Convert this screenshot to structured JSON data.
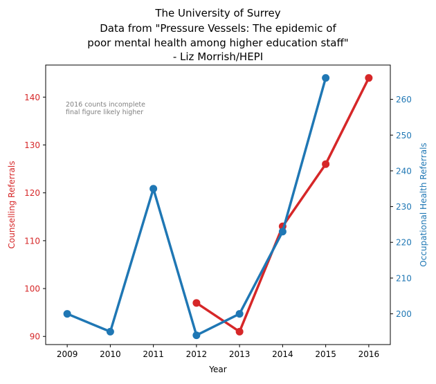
{
  "chart_data": {
    "type": "line",
    "title_lines": [
      "The University of Surrey",
      "Data from \"Pressure Vessels: The epidemic of",
      "poor mental health among higher education staff\"",
      "- Liz Morrish/HEPI"
    ],
    "xlabel": "Year",
    "ylabel_left": "Counselling Referrals",
    "ylabel_right": "Occupational Health Referrals",
    "annotation_lines": [
      "2016 counts incomplete",
      "final figure likely higher"
    ],
    "x_ticks": [
      "2009",
      "2010",
      "2011",
      "2012",
      "2013",
      "2014",
      "2015",
      "2016"
    ],
    "x_range": [
      2008.5,
      2016.5
    ],
    "y_left_ticks": [
      90,
      100,
      110,
      120,
      130,
      140
    ],
    "y_left_range": [
      88.3,
      146.7
    ],
    "y_right_ticks": [
      200,
      210,
      220,
      230,
      240,
      250,
      260
    ],
    "y_right_range": [
      191.4,
      269.6
    ],
    "grid": false,
    "series": [
      {
        "axis": "left",
        "color": "#d62728",
        "points": [
          [
            2012,
            97
          ],
          [
            2013,
            91
          ],
          [
            2014,
            113
          ],
          [
            2015,
            126
          ],
          [
            2016,
            144
          ]
        ]
      },
      {
        "axis": "right",
        "color": "#1f77b4",
        "points": [
          [
            2009,
            200
          ],
          [
            2010,
            195
          ],
          [
            2011,
            235
          ],
          [
            2012,
            194
          ],
          [
            2013,
            200
          ],
          [
            2014,
            223
          ],
          [
            2015,
            266
          ]
        ]
      }
    ]
  }
}
